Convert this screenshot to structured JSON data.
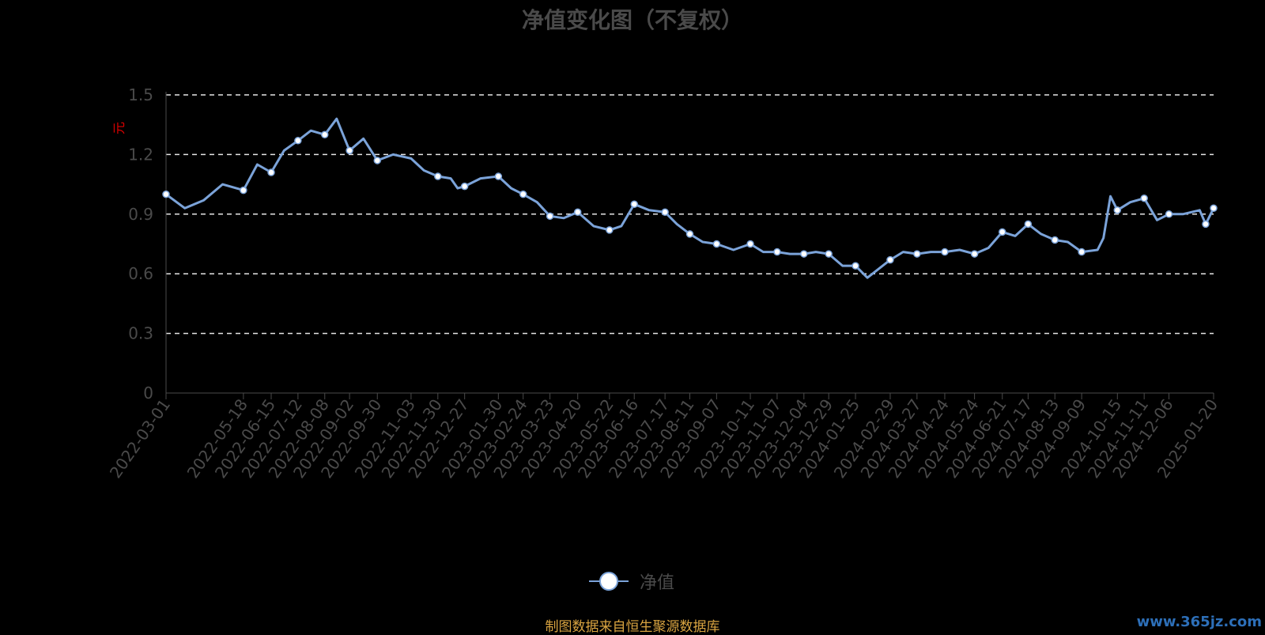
{
  "chart_data": {
    "type": "line",
    "title": "净值变化图（不复权）",
    "ylabel": "元",
    "xlabel": "",
    "ylim": [
      0,
      1.5
    ],
    "yticks": [
      "0",
      "0.3",
      "0.6",
      "0.9",
      "1.2",
      "1.5"
    ],
    "ytick_values": [
      0,
      0.3,
      0.6,
      0.9,
      1.2,
      1.5
    ],
    "grid": true,
    "legend_position": "bottom-center",
    "x_tick_labels": [
      "2022-03-01",
      "2022-05-18",
      "2022-06-15",
      "2022-07-12",
      "2022-08-08",
      "2022-09-02",
      "2022-09-30",
      "2022-11-03",
      "2022-11-30",
      "2022-12-27",
      "2023-01-30",
      "2023-02-24",
      "2023-03-23",
      "2023-04-20",
      "2023-05-22",
      "2023-06-16",
      "2023-07-17",
      "2023-08-11",
      "2023-09-07",
      "2023-10-11",
      "2023-11-07",
      "2023-12-04",
      "2023-12-29",
      "2024-01-25",
      "2024-02-29",
      "2024-03-27",
      "2024-04-24",
      "2024-05-24",
      "2024-06-21",
      "2024-07-17",
      "2024-08-13",
      "2024-09-09",
      "2024-10-15",
      "2024-11-11",
      "2024-12-06",
      "2025-01-20"
    ],
    "series": [
      {
        "name": "净值",
        "color": "#7ba3d9",
        "x": [
          "2022-03-01",
          "2022-03-20",
          "2022-04-08",
          "2022-04-27",
          "2022-05-18",
          "2022-06-01",
          "2022-06-15",
          "2022-06-28",
          "2022-07-12",
          "2022-07-25",
          "2022-08-08",
          "2022-08-20",
          "2022-09-02",
          "2022-09-16",
          "2022-09-30",
          "2022-10-16",
          "2022-11-03",
          "2022-11-16",
          "2022-11-30",
          "2022-12-13",
          "2022-12-20",
          "2022-12-27",
          "2023-01-12",
          "2023-01-30",
          "2023-02-12",
          "2023-02-24",
          "2023-03-10",
          "2023-03-23",
          "2023-04-06",
          "2023-04-20",
          "2023-05-06",
          "2023-05-22",
          "2023-06-03",
          "2023-06-16",
          "2023-07-01",
          "2023-07-17",
          "2023-07-29",
          "2023-08-11",
          "2023-08-24",
          "2023-09-07",
          "2023-09-24",
          "2023-10-11",
          "2023-10-24",
          "2023-11-07",
          "2023-11-20",
          "2023-12-04",
          "2023-12-16",
          "2023-12-29",
          "2024-01-12",
          "2024-01-25",
          "2024-02-06",
          "2024-02-29",
          "2024-03-13",
          "2024-03-27",
          "2024-04-10",
          "2024-04-24",
          "2024-05-09",
          "2024-05-24",
          "2024-06-07",
          "2024-06-21",
          "2024-07-04",
          "2024-07-17",
          "2024-07-30",
          "2024-08-13",
          "2024-08-26",
          "2024-09-09",
          "2024-09-25",
          "2024-10-01",
          "2024-10-08",
          "2024-10-15",
          "2024-10-28",
          "2024-11-11",
          "2024-11-24",
          "2024-12-06",
          "2024-12-20",
          "2025-01-06",
          "2025-01-12",
          "2025-01-20"
        ],
        "y": [
          1.0,
          0.93,
          0.97,
          1.05,
          1.02,
          1.15,
          1.11,
          1.22,
          1.27,
          1.32,
          1.3,
          1.38,
          1.22,
          1.28,
          1.17,
          1.2,
          1.18,
          1.12,
          1.09,
          1.08,
          1.03,
          1.04,
          1.08,
          1.09,
          1.03,
          1.0,
          0.96,
          0.89,
          0.88,
          0.91,
          0.84,
          0.82,
          0.84,
          0.95,
          0.92,
          0.91,
          0.85,
          0.8,
          0.76,
          0.75,
          0.72,
          0.75,
          0.71,
          0.71,
          0.7,
          0.7,
          0.71,
          0.7,
          0.64,
          0.64,
          0.58,
          0.67,
          0.71,
          0.7,
          0.71,
          0.71,
          0.72,
          0.7,
          0.73,
          0.81,
          0.79,
          0.85,
          0.8,
          0.77,
          0.76,
          0.71,
          0.72,
          0.78,
          0.99,
          0.92,
          0.96,
          0.98,
          0.87,
          0.9,
          0.9,
          0.92,
          0.85,
          0.93
        ],
        "markers": [
          "2022-03-01",
          "2022-05-18",
          "2022-06-15",
          "2022-07-12",
          "2022-08-08",
          "2022-09-02",
          "2022-09-30",
          "2022-11-30",
          "2022-12-27",
          "2023-01-30",
          "2023-02-24",
          "2023-03-23",
          "2023-04-20",
          "2023-05-22",
          "2023-06-16",
          "2023-07-17",
          "2023-08-11",
          "2023-09-07",
          "2023-10-11",
          "2023-11-07",
          "2023-12-04",
          "2023-12-29",
          "2024-01-25",
          "2024-02-29",
          "2024-03-27",
          "2024-04-24",
          "2024-05-24",
          "2024-06-21",
          "2024-07-17",
          "2024-08-13",
          "2024-09-09",
          "2024-10-15",
          "2024-11-11",
          "2024-12-06",
          "2025-01-12",
          "2025-01-20"
        ]
      }
    ]
  },
  "legend": {
    "label": "净值"
  },
  "source_note": "制图数据来自恒生聚源数据库",
  "watermark": "www.365jz.com"
}
